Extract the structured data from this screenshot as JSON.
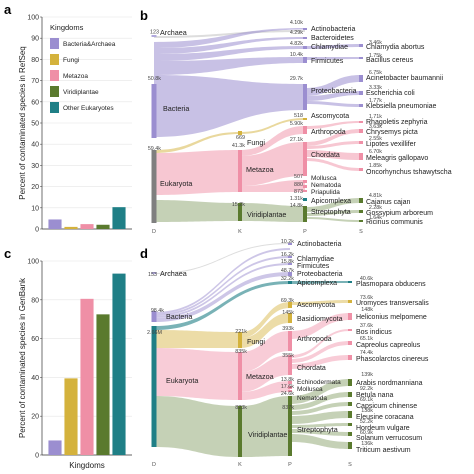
{
  "panels": {
    "a": "a",
    "b": "b",
    "c": "c",
    "d": "d"
  },
  "colors": {
    "Bacteria&Archaea": "#9b8ed0",
    "Fungi": "#d4b23c",
    "Metazoa": "#ef8fa6",
    "Viridiplantae": "#5a7a2e",
    "Other Eukaryotes": "#1f7f86",
    "archaea_node": "#b0a8dc",
    "eukaryota_node": "#7f7f7f",
    "flow_other": "#bcbcbc"
  },
  "chart_data": [
    {
      "type": "bar",
      "panel": "a",
      "ylabel": "Percent of contaminated species in RefSeq",
      "xlabel": "",
      "ylim": [
        0,
        100
      ],
      "yticks": [
        0,
        10,
        20,
        30,
        40,
        50,
        60,
        70,
        80,
        90,
        100
      ],
      "legend_title": "Kingdoms",
      "legend_position": "top-right",
      "categories": [
        "Bacteria&Archaea",
        "Fungi",
        "Metazoa",
        "Viridiplantae",
        "Other Eukaryotes"
      ],
      "values": [
        4.5,
        1.0,
        2.3,
        2.0,
        10.3
      ]
    },
    {
      "type": "sankey",
      "panel": "b",
      "source": "RefSeq",
      "axis_labels": [
        "D",
        "K",
        "P",
        "S"
      ],
      "nodes": [
        {
          "name": "Archaea",
          "value": "123",
          "level": "D",
          "color": "#b0a8dc"
        },
        {
          "name": "Bacteria",
          "value": "50.8k",
          "level": "D",
          "color": "#9b8ed0"
        },
        {
          "name": "Eukaryota",
          "value": "59.4k",
          "level": "D",
          "color": "#7f7f7f"
        },
        {
          "name": "Fungi",
          "value": "669",
          "level": "K",
          "color": "#d4b23c"
        },
        {
          "name": "Metazoa",
          "value": "41.3k",
          "level": "K",
          "color": "#ef8fa6"
        },
        {
          "name": "Viridiplantae",
          "value": "15.2k",
          "level": "K",
          "color": "#5a7a2e"
        },
        {
          "name": "Actinobacteria",
          "value": "4.10k",
          "level": "P"
        },
        {
          "name": "Bacteroidetes",
          "value": "4.29k",
          "level": "P"
        },
        {
          "name": "Chlamydiae",
          "value": "4.82k",
          "level": "P"
        },
        {
          "name": "Firmicutes",
          "value": "10.4k",
          "level": "P"
        },
        {
          "name": "Proteobacteria",
          "value": "29.7k",
          "level": "P"
        },
        {
          "name": "Ascomycota",
          "value": "518",
          "level": "P"
        },
        {
          "name": "Arthropoda",
          "value": "5.90k",
          "level": "P"
        },
        {
          "name": "Chordata",
          "value": "27.1k",
          "level": "P"
        },
        {
          "name": "Mollusca",
          "value": "507",
          "level": "P"
        },
        {
          "name": "Nematoda",
          "value": "880",
          "level": "P"
        },
        {
          "name": "Priapulida",
          "value": "873",
          "level": "P"
        },
        {
          "name": "Apicomplexa",
          "value": "1.31k",
          "level": "P"
        },
        {
          "name": "Streptophyta",
          "value": "14.8k",
          "level": "P"
        },
        {
          "name": "Chlamydia abortus",
          "value": "3.46k",
          "level": "S"
        },
        {
          "name": "Bacillus cereus",
          "value": "1.75k",
          "level": "S"
        },
        {
          "name": "Acinetobacter baumannii",
          "value": "6.75k",
          "level": "S"
        },
        {
          "name": "Escherichia coli",
          "value": "3.33k",
          "level": "S"
        },
        {
          "name": "Klebsiella pneumoniae",
          "value": "1.77k",
          "level": "S"
        },
        {
          "name": "Rhagoletis zephyria",
          "value": "1.71k",
          "level": "S"
        },
        {
          "name": "Chrysemys picta",
          "value": "3.63k",
          "level": "S"
        },
        {
          "name": "Lipotes vexillifer",
          "value": "2.55k",
          "level": "S"
        },
        {
          "name": "Meleagris gallopavo",
          "value": "6.70k",
          "level": "S"
        },
        {
          "name": "Oncorhynchus tshawytscha",
          "value": "1.85k",
          "level": "S"
        },
        {
          "name": "Cajanus cajan",
          "value": "4.81k",
          "level": "S"
        },
        {
          "name": "Gossypium arboreum",
          "value": "2.28k",
          "level": "S"
        },
        {
          "name": "Ricinus communis",
          "value": "1.64k",
          "level": "S"
        }
      ]
    },
    {
      "type": "bar",
      "panel": "c",
      "ylabel": "Percent of contaminated species in GenBank",
      "xlabel": "Kingdoms",
      "ylim": [
        0,
        100
      ],
      "yticks": [
        0,
        20,
        40,
        60,
        80,
        100
      ],
      "categories": [
        "Bacteria&Archaea",
        "Fungi",
        "Metazoa",
        "Viridiplantae",
        "Other Eukaryotes"
      ],
      "values": [
        7.5,
        39.5,
        80.5,
        72.5,
        93.5
      ]
    },
    {
      "type": "sankey",
      "panel": "d",
      "source": "GenBank",
      "axis_labels": [
        "D",
        "K",
        "P",
        "S"
      ],
      "nodes": [
        {
          "name": "Archaea",
          "value": "153",
          "level": "D",
          "color": "#b0a8dc"
        },
        {
          "name": "Bacteria",
          "value": "98.4k",
          "level": "D",
          "color": "#9b8ed0"
        },
        {
          "name": "Eukaryota",
          "value": "2.66M",
          "level": "D",
          "color": "#1f7f86"
        },
        {
          "name": "Fungi",
          "value": "221k",
          "level": "K",
          "color": "#d4b23c"
        },
        {
          "name": "Metazoa",
          "value": "835k",
          "level": "K",
          "color": "#ef8fa6"
        },
        {
          "name": "Viridiplantae",
          "value": "823k",
          "level": "K",
          "color": "#5a7a2e"
        },
        {
          "name": "Actinobacteria",
          "value": "10.2k",
          "level": "P"
        },
        {
          "name": "Chlamydiae",
          "value": "16.2k",
          "level": "P"
        },
        {
          "name": "Firmicutes",
          "value": "15.8k",
          "level": "P"
        },
        {
          "name": "Proteobacteria",
          "value": "48.7k",
          "level": "P"
        },
        {
          "name": "Apicomplexa",
          "value": "32.2k",
          "level": "P"
        },
        {
          "name": "Ascomycota",
          "value": "69.3k",
          "level": "P"
        },
        {
          "name": "Basidiomycota",
          "value": "145k",
          "level": "P"
        },
        {
          "name": "Arthropoda",
          "value": "393k",
          "level": "P"
        },
        {
          "name": "Chordata",
          "value": "355k",
          "level": "P"
        },
        {
          "name": "Echinodermata",
          "value": "13.8k",
          "level": "P"
        },
        {
          "name": "Mollusca",
          "value": "17.6k",
          "level": "P"
        },
        {
          "name": "Nematoda",
          "value": "24.6k",
          "level": "P"
        },
        {
          "name": "Streptophyta",
          "value": "837k",
          "level": "P"
        },
        {
          "name": "Plasmopara obducens",
          "value": "40.6k",
          "level": "S"
        },
        {
          "name": "Uromyces transversalis",
          "value": "73.6k",
          "level": "S"
        },
        {
          "name": "Heliconius melpomene",
          "value": "148k",
          "level": "S"
        },
        {
          "name": "Bos indicus",
          "value": "37.6k",
          "level": "S"
        },
        {
          "name": "Capreolus capreolus",
          "value": "65.1k",
          "level": "S"
        },
        {
          "name": "Phascolarctos cinereus",
          "value": "74.4k",
          "level": "S"
        },
        {
          "name": "Arabis nordmanniana",
          "value": "139k",
          "level": "S"
        },
        {
          "name": "Betula nana",
          "value": "92.2k",
          "level": "S"
        },
        {
          "name": "Capsicum chinense",
          "value": "69.1k",
          "level": "S"
        },
        {
          "name": "Eleusine coracana",
          "value": "138k",
          "level": "S"
        },
        {
          "name": "Hordeum vulgare",
          "value": "52.2k",
          "level": "S"
        },
        {
          "name": "Solanum verrucosum",
          "value": "60.9k",
          "level": "S"
        },
        {
          "name": "Triticum aestivum",
          "value": "136k",
          "level": "S"
        }
      ]
    }
  ]
}
